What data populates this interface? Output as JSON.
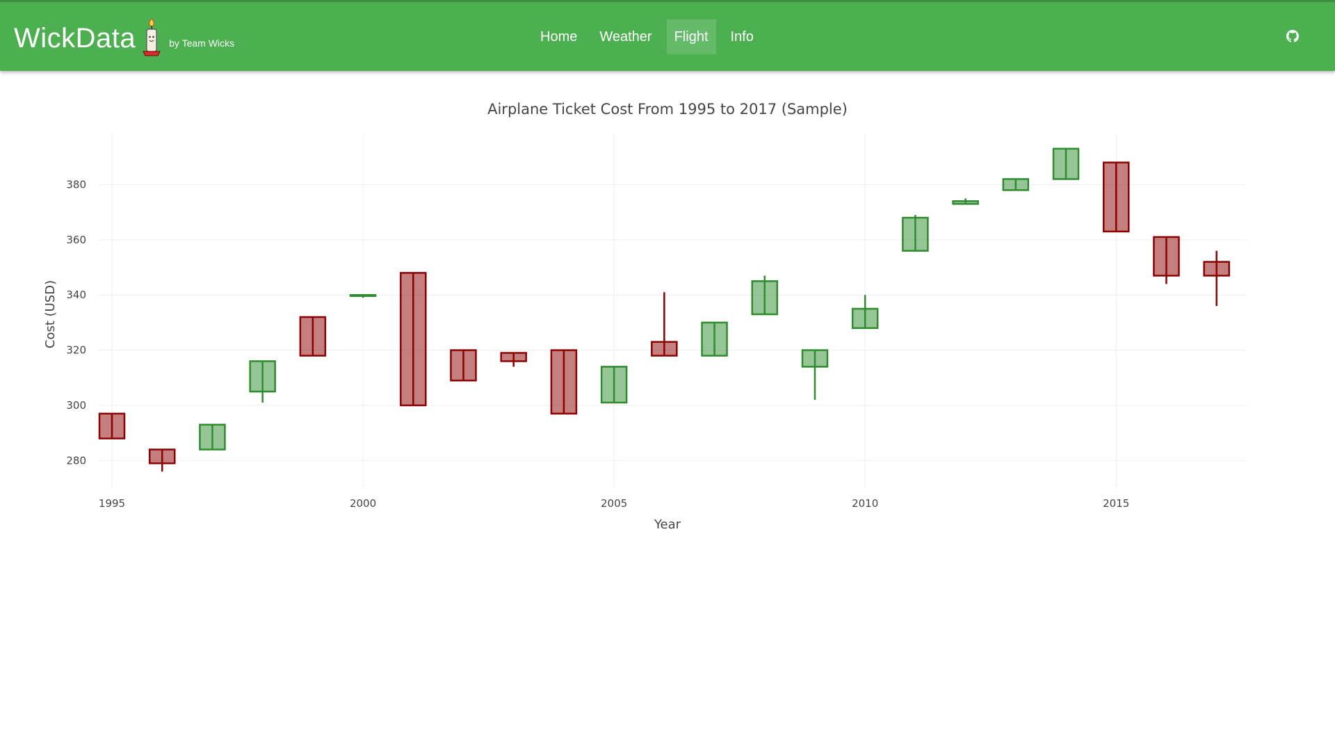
{
  "navbar": {
    "brand": "WickData",
    "subtitle": "by Team Wicks",
    "links": [
      {
        "label": "Home",
        "active": false
      },
      {
        "label": "Weather",
        "active": false
      },
      {
        "label": "Flight",
        "active": true
      },
      {
        "label": "Info",
        "active": false
      }
    ],
    "github_icon": "github-icon",
    "color": "#4caf50"
  },
  "chart_data": {
    "type": "candlestick",
    "title": "Airplane Ticket Cost From 1995 to 2017 (Sample)",
    "xlabel": "Year",
    "ylabel": "Cost (USD)",
    "xlim": [
      1995,
      2017.6
    ],
    "ylim": [
      270,
      398
    ],
    "x_ticks": [
      1995,
      2000,
      2005,
      2010,
      2015
    ],
    "y_ticks": [
      280,
      300,
      320,
      340,
      360,
      380
    ],
    "grid": true,
    "increasing_color": "#2e8b2e",
    "decreasing_color": "#8b0000",
    "data": [
      {
        "x": 1995,
        "open": 297,
        "high": 297,
        "low": 288,
        "close": 288
      },
      {
        "x": 1996,
        "open": 284,
        "high": 284,
        "low": 276,
        "close": 279
      },
      {
        "x": 1997,
        "open": 284,
        "high": 293,
        "low": 284,
        "close": 293
      },
      {
        "x": 1998,
        "open": 305,
        "high": 316,
        "low": 301,
        "close": 316
      },
      {
        "x": 1999,
        "open": 332,
        "high": 332,
        "low": 318,
        "close": 318
      },
      {
        "x": 2000,
        "open": 340,
        "high": 340,
        "low": 339,
        "close": 340
      },
      {
        "x": 2001,
        "open": 348,
        "high": 348,
        "low": 300,
        "close": 300
      },
      {
        "x": 2002,
        "open": 320,
        "high": 320,
        "low": 309,
        "close": 309
      },
      {
        "x": 2003,
        "open": 319,
        "high": 319,
        "low": 314,
        "close": 316
      },
      {
        "x": 2004,
        "open": 320,
        "high": 320,
        "low": 297,
        "close": 297
      },
      {
        "x": 2005,
        "open": 301,
        "high": 314,
        "low": 301,
        "close": 314
      },
      {
        "x": 2006,
        "open": 323,
        "high": 341,
        "low": 318,
        "close": 318
      },
      {
        "x": 2007,
        "open": 318,
        "high": 330,
        "low": 318,
        "close": 330
      },
      {
        "x": 2008,
        "open": 333,
        "high": 347,
        "low": 333,
        "close": 345
      },
      {
        "x": 2009,
        "open": 314,
        "high": 320,
        "low": 302,
        "close": 320
      },
      {
        "x": 2010,
        "open": 328,
        "high": 340,
        "low": 328,
        "close": 335
      },
      {
        "x": 2011,
        "open": 356,
        "high": 369,
        "low": 356,
        "close": 368
      },
      {
        "x": 2012,
        "open": 373,
        "high": 375,
        "low": 373,
        "close": 374
      },
      {
        "x": 2013,
        "open": 378,
        "high": 382,
        "low": 378,
        "close": 382
      },
      {
        "x": 2014,
        "open": 382,
        "high": 393,
        "low": 382,
        "close": 393
      },
      {
        "x": 2015,
        "open": 388,
        "high": 388,
        "low": 363,
        "close": 363
      },
      {
        "x": 2016,
        "open": 361,
        "high": 361,
        "low": 344,
        "close": 347
      },
      {
        "x": 2017,
        "open": 352,
        "high": 356,
        "low": 336,
        "close": 347
      }
    ]
  }
}
